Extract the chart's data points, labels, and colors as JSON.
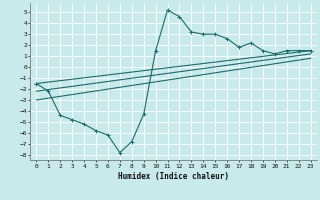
{
  "xlabel": "Humidex (Indice chaleur)",
  "ylabel": "",
  "bg_color": "#c8eaea",
  "grid_color": "#ffffff",
  "line_color": "#1a6b6b",
  "xlim": [
    -0.5,
    23.5
  ],
  "ylim": [
    -8.5,
    5.8
  ],
  "xticks": [
    0,
    1,
    2,
    3,
    4,
    5,
    6,
    7,
    8,
    9,
    10,
    11,
    12,
    13,
    14,
    15,
    16,
    17,
    18,
    19,
    20,
    21,
    22,
    23
  ],
  "yticks": [
    -8,
    -7,
    -6,
    -5,
    -4,
    -3,
    -2,
    -1,
    0,
    1,
    2,
    3,
    4,
    5
  ],
  "series1_x": [
    0,
    1,
    2,
    3,
    4,
    5,
    6,
    7,
    8,
    9,
    10,
    11,
    12,
    13,
    14,
    15,
    16,
    17,
    18,
    19,
    20,
    21,
    22,
    23
  ],
  "series1_y": [
    -1.5,
    -2.2,
    -4.4,
    -4.8,
    -5.2,
    -5.8,
    -6.2,
    -7.8,
    -6.8,
    -4.3,
    1.5,
    5.2,
    4.6,
    3.2,
    3.0,
    3.0,
    2.6,
    1.8,
    2.2,
    1.5,
    1.2,
    1.5,
    1.5,
    1.5
  ],
  "series2_x": [
    0,
    23
  ],
  "series2_y": [
    -1.5,
    1.5
  ],
  "series3_x": [
    0,
    23
  ],
  "series3_y": [
    -2.2,
    1.2
  ],
  "series4_x": [
    0,
    23
  ],
  "series4_y": [
    -3.0,
    0.8
  ],
  "xlabel_fontsize": 5.5,
  "tick_fontsize": 4.5
}
